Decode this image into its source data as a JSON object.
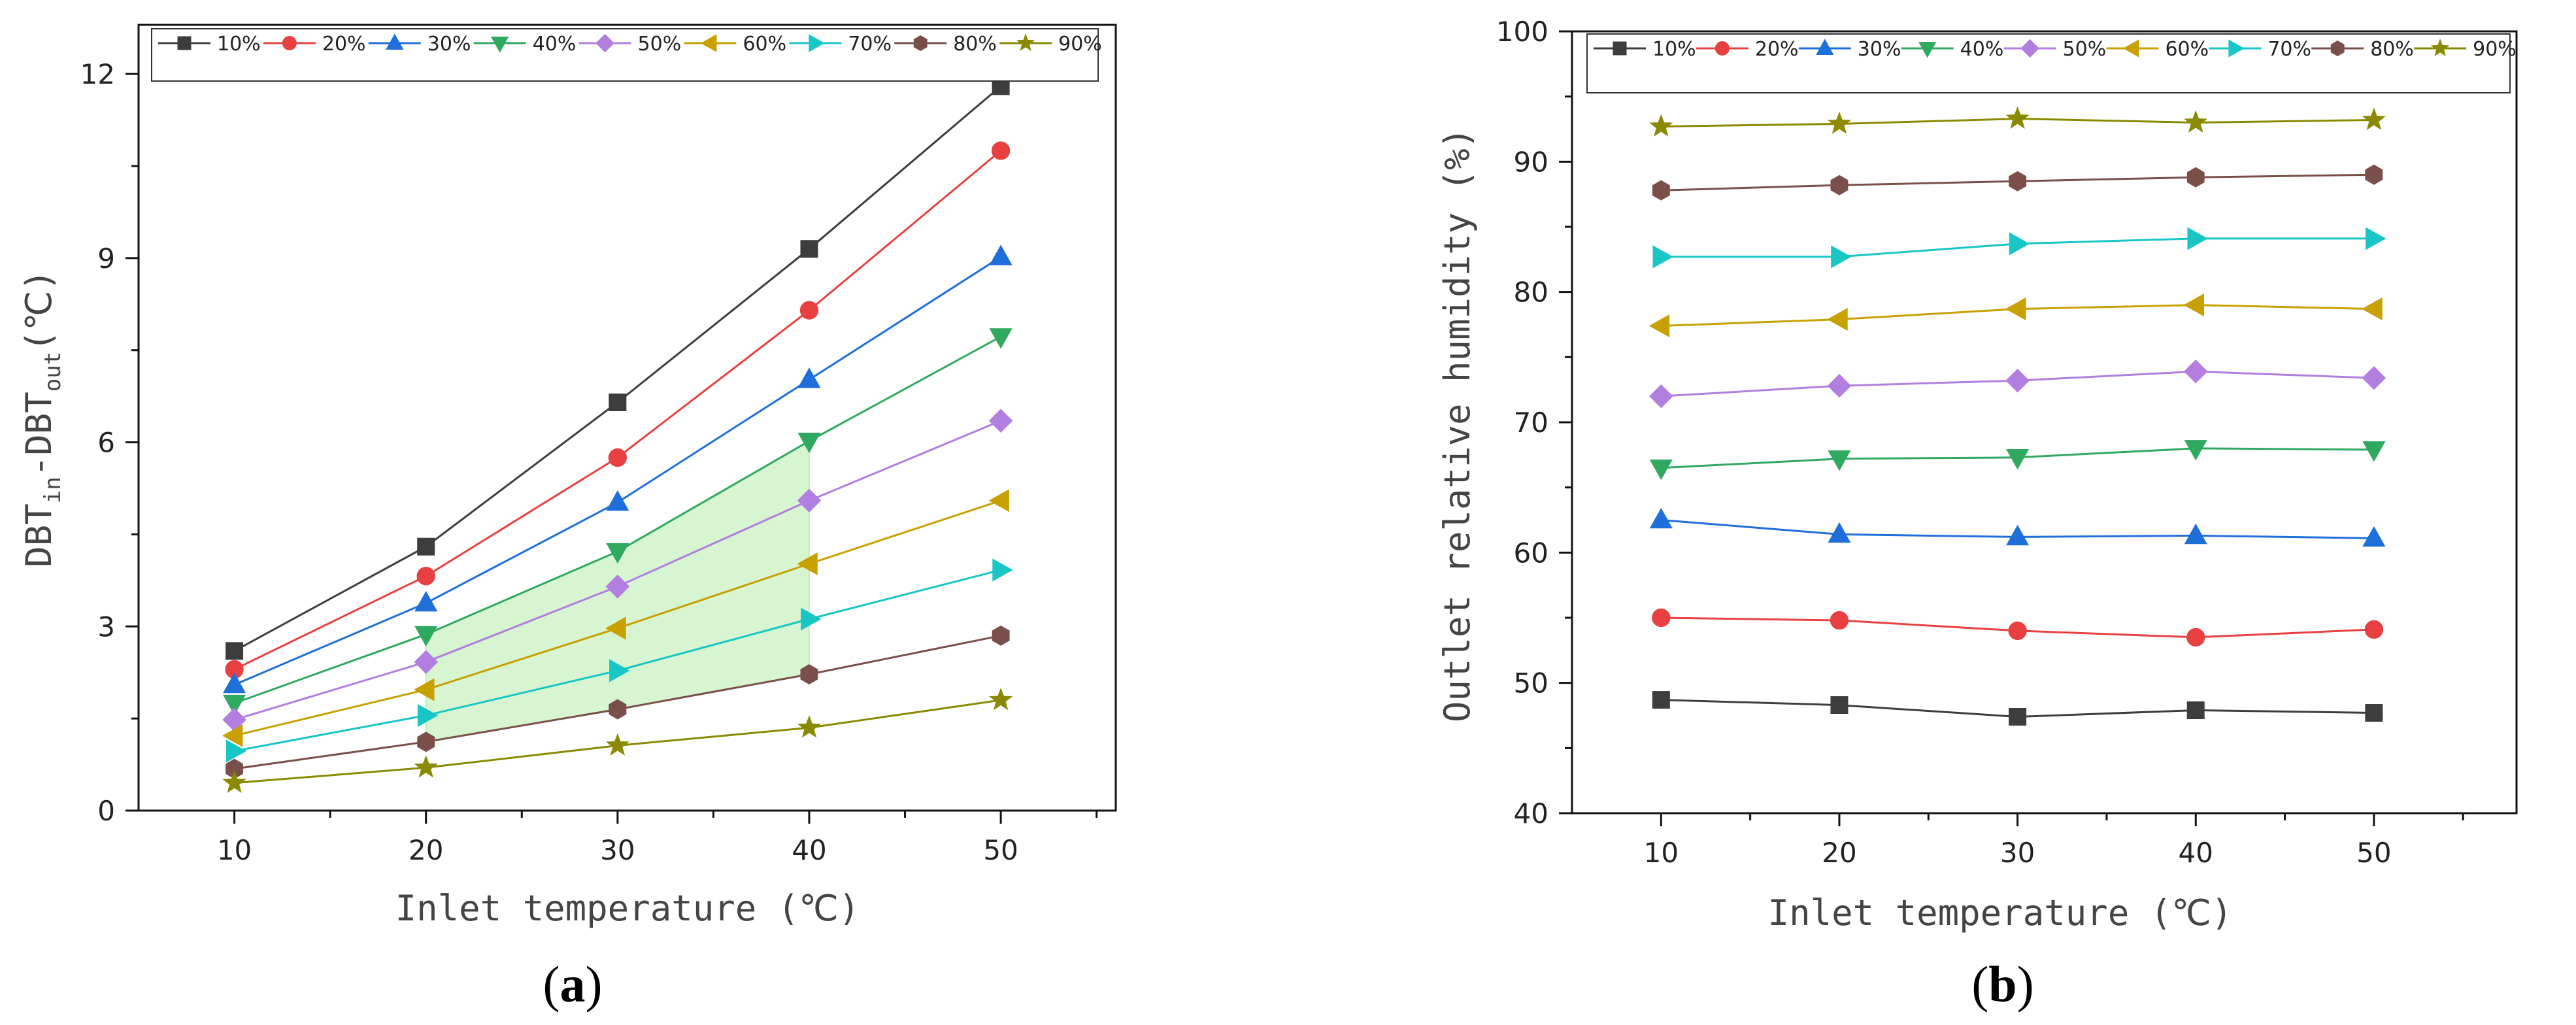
{
  "colors": {
    "10%": "#3d3d3d",
    "20%": "#e84040",
    "30%": "#1e6fd9",
    "40%": "#2fa860",
    "50%": "#b27ee0",
    "60%": "#c8a000",
    "70%": "#18c6c6",
    "80%": "#7a4f4a",
    "90%": "#8a8a00",
    "shade": "#c8f2c0"
  },
  "chart_data": [
    {
      "type": "line",
      "panel_label": "a",
      "title": "",
      "xlabel": "Inlet temperature (℃)",
      "ylabel_parts": {
        "main1": "DBT",
        "sub1": "in",
        "dash": "-DBT",
        "sub2": "out",
        "unit": "(℃)"
      },
      "x": [
        10,
        20,
        30,
        40,
        50
      ],
      "xlim": [
        5,
        56
      ],
      "ylim": [
        0,
        12.8
      ],
      "xticks": [
        "10",
        "20",
        "30",
        "40",
        "50"
      ],
      "yticks": [
        "0",
        "3",
        "6",
        "9",
        "12"
      ],
      "ytick_values": [
        0,
        3,
        6,
        9,
        12
      ],
      "legend": "top",
      "shaded_region": {
        "between": [
          "40%",
          "80%"
        ],
        "x_range": [
          20,
          40
        ]
      },
      "series": [
        {
          "name": "10%",
          "marker": "square",
          "values": [
            2.6,
            4.3,
            6.65,
            9.15,
            11.8
          ]
        },
        {
          "name": "20%",
          "marker": "circle",
          "values": [
            2.3,
            3.82,
            5.75,
            8.15,
            10.75
          ]
        },
        {
          "name": "30%",
          "marker": "triangle-up",
          "values": [
            2.05,
            3.38,
            5.02,
            7.02,
            9.02
          ]
        },
        {
          "name": "40%",
          "marker": "triangle-down",
          "values": [
            1.75,
            2.87,
            4.22,
            6.02,
            7.72
          ]
        },
        {
          "name": "50%",
          "marker": "diamond",
          "values": [
            1.48,
            2.42,
            3.65,
            5.05,
            6.35
          ]
        },
        {
          "name": "60%",
          "marker": "triangle-left",
          "values": [
            1.22,
            1.97,
            2.97,
            4.02,
            5.05
          ]
        },
        {
          "name": "70%",
          "marker": "triangle-right",
          "values": [
            0.97,
            1.55,
            2.28,
            3.12,
            3.92
          ]
        },
        {
          "name": "80%",
          "marker": "hexagon",
          "values": [
            0.68,
            1.12,
            1.65,
            2.22,
            2.85
          ]
        },
        {
          "name": "90%",
          "marker": "star",
          "values": [
            0.45,
            0.7,
            1.06,
            1.35,
            1.8
          ]
        }
      ]
    },
    {
      "type": "line",
      "panel_label": "b",
      "title": "",
      "xlabel": "Inlet temperature (℃)",
      "ylabel": "Outlet relative humidity (%)",
      "x": [
        10,
        20,
        30,
        40,
        50
      ],
      "xlim": [
        5,
        58
      ],
      "ylim": [
        40,
        100
      ],
      "xticks": [
        "10",
        "20",
        "30",
        "40",
        "50"
      ],
      "yticks": [
        "40",
        "50",
        "60",
        "70",
        "80",
        "90",
        "100"
      ],
      "ytick_values": [
        40,
        50,
        60,
        70,
        80,
        90,
        100
      ],
      "legend": "top",
      "series": [
        {
          "name": "10%",
          "marker": "square",
          "values": [
            48.7,
            48.3,
            47.4,
            47.9,
            47.7
          ]
        },
        {
          "name": "20%",
          "marker": "circle",
          "values": [
            55.0,
            54.8,
            54.0,
            53.5,
            54.1
          ]
        },
        {
          "name": "30%",
          "marker": "triangle-up",
          "values": [
            62.5,
            61.4,
            61.2,
            61.3,
            61.1
          ]
        },
        {
          "name": "40%",
          "marker": "triangle-down",
          "values": [
            66.5,
            67.2,
            67.3,
            68.0,
            67.9
          ]
        },
        {
          "name": "50%",
          "marker": "diamond",
          "values": [
            72.0,
            72.8,
            73.2,
            73.9,
            73.4
          ]
        },
        {
          "name": "60%",
          "marker": "triangle-left",
          "values": [
            77.4,
            77.9,
            78.7,
            79.0,
            78.7
          ]
        },
        {
          "name": "70%",
          "marker": "triangle-right",
          "values": [
            82.7,
            82.7,
            83.7,
            84.1,
            84.1
          ]
        },
        {
          "name": "80%",
          "marker": "hexagon",
          "values": [
            87.8,
            88.2,
            88.5,
            88.8,
            89.0
          ]
        },
        {
          "name": "90%",
          "marker": "star",
          "values": [
            92.7,
            92.9,
            93.3,
            93.0,
            93.2
          ]
        }
      ]
    }
  ]
}
